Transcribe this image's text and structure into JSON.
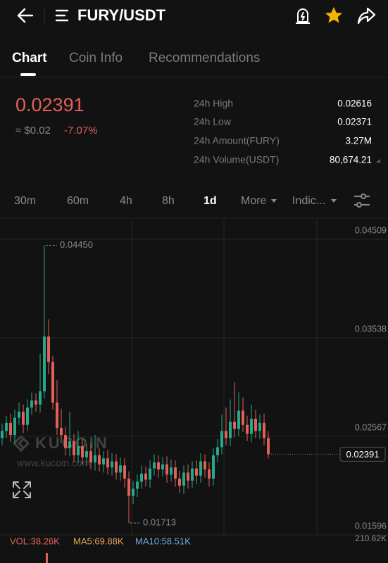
{
  "header": {
    "title": "FURY/USDT"
  },
  "tabs": [
    "Chart",
    "Coin Info",
    "Recommendations"
  ],
  "price": {
    "last": "0.02391",
    "fiat": "≈ $0.02",
    "change": "-7.07%"
  },
  "stats": [
    {
      "label": "24h High",
      "value": "0.02616"
    },
    {
      "label": "24h Low",
      "value": "0.02371"
    },
    {
      "label": "24h Amount(FURY)",
      "value": "3.27M"
    },
    {
      "label": "24h Volume(USDT)",
      "value": "80,674.21"
    }
  ],
  "intervals": [
    "30m",
    "60m",
    "4h",
    "8h",
    "1d",
    "More",
    "Indic..."
  ],
  "watermark": {
    "brand": "KUCOIN",
    "url": "www.kucoin.com"
  },
  "volume_bar": {
    "vol": "VOL:38.26K",
    "ma5": "MA5:69.88K",
    "ma10": "MA10:58.51K",
    "axis_max": "210.62K"
  },
  "chart_data": {
    "type": "candlestick",
    "up_color": "#25a98a",
    "down_color": "#e0605a",
    "ylim": [
      0.01596,
      0.04703
    ],
    "yticks": [
      0.04509,
      0.03538,
      0.02567,
      0.01596
    ],
    "grid": true,
    "opens": [
      0.0255,
      0.0262,
      0.027,
      0.0258,
      0.0275,
      0.0281,
      0.0268,
      0.0285,
      0.0292,
      0.0288,
      0.0301,
      0.0355,
      0.033,
      0.029,
      0.0265,
      0.0258,
      0.0245,
      0.0252,
      0.0238,
      0.0247,
      0.0236,
      0.0242,
      0.0231,
      0.0238,
      0.0229,
      0.0235,
      0.0226,
      0.0232,
      0.0221,
      0.0228,
      0.0215,
      0.0198,
      0.0205,
      0.0212,
      0.022,
      0.0214,
      0.0225,
      0.0231,
      0.0224,
      0.0229,
      0.0219,
      0.0226,
      0.0215,
      0.0208,
      0.0221,
      0.0213,
      0.0225,
      0.0218,
      0.0232,
      0.0224,
      0.0215,
      0.0238,
      0.0246,
      0.0262,
      0.0255,
      0.0271,
      0.0264,
      0.0282,
      0.0268,
      0.0259,
      0.0274,
      0.0262,
      0.027,
      0.0255
    ],
    "highs": [
      0.0269,
      0.0277,
      0.0279,
      0.0283,
      0.029,
      0.0288,
      0.0293,
      0.03,
      0.0299,
      0.0338,
      0.0445,
      0.0372,
      0.0336,
      0.0312,
      0.0284,
      0.0266,
      0.0281,
      0.0259,
      0.0262,
      0.0255,
      0.0249,
      0.025,
      0.0258,
      0.0245,
      0.0242,
      0.0243,
      0.024,
      0.0239,
      0.0236,
      0.0235,
      0.0222,
      0.0213,
      0.0219,
      0.0228,
      0.0227,
      0.0233,
      0.0239,
      0.0238,
      0.0236,
      0.0237,
      0.0234,
      0.0233,
      0.0223,
      0.0228,
      0.0229,
      0.0232,
      0.0233,
      0.024,
      0.0239,
      0.0231,
      0.0245,
      0.0254,
      0.0278,
      0.0285,
      0.0293,
      0.031,
      0.03,
      0.0295,
      0.0277,
      0.0288,
      0.0283,
      0.0278,
      0.0279,
      0.0262
    ],
    "lows": [
      0.0248,
      0.0255,
      0.0251,
      0.025,
      0.0268,
      0.026,
      0.0262,
      0.0278,
      0.0281,
      0.028,
      0.0294,
      0.0318,
      0.0283,
      0.0258,
      0.025,
      0.0238,
      0.0237,
      0.0231,
      0.023,
      0.0229,
      0.0228,
      0.0224,
      0.0223,
      0.0222,
      0.0221,
      0.0219,
      0.0218,
      0.0214,
      0.0213,
      0.0206,
      0.01713,
      0.019,
      0.0197,
      0.0205,
      0.0207,
      0.0206,
      0.0218,
      0.0216,
      0.0217,
      0.0211,
      0.0212,
      0.0207,
      0.0201,
      0.02,
      0.0205,
      0.0206,
      0.021,
      0.0211,
      0.0216,
      0.0207,
      0.0208,
      0.0231,
      0.0239,
      0.0248,
      0.0247,
      0.0256,
      0.0257,
      0.0261,
      0.0252,
      0.0251,
      0.0255,
      0.0254,
      0.0248,
      0.0235
    ],
    "closes": [
      0.0262,
      0.027,
      0.0258,
      0.0275,
      0.0281,
      0.0268,
      0.0285,
      0.0292,
      0.0288,
      0.0301,
      0.0355,
      0.033,
      0.029,
      0.0265,
      0.0258,
      0.0245,
      0.0252,
      0.0238,
      0.0247,
      0.0236,
      0.0242,
      0.0231,
      0.0238,
      0.0229,
      0.0235,
      0.0226,
      0.0232,
      0.0221,
      0.0228,
      0.0215,
      0.0198,
      0.0205,
      0.0212,
      0.022,
      0.0214,
      0.0225,
      0.0231,
      0.0224,
      0.0229,
      0.0219,
      0.0226,
      0.0215,
      0.0208,
      0.0221,
      0.0213,
      0.0225,
      0.0218,
      0.0232,
      0.0224,
      0.0215,
      0.0238,
      0.0246,
      0.0262,
      0.0255,
      0.0271,
      0.0264,
      0.0282,
      0.0268,
      0.0259,
      0.0274,
      0.0262,
      0.027,
      0.0255,
      0.02391
    ],
    "max_label": "0.04450",
    "min_label": "0.01713",
    "last_label": "0.02391"
  }
}
